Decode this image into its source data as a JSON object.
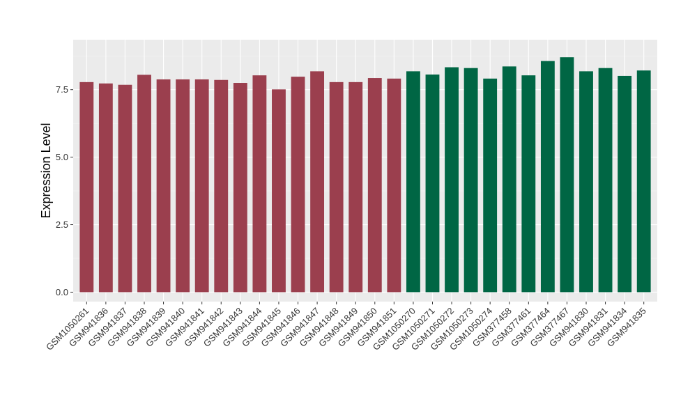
{
  "chart_data": {
    "type": "bar",
    "ylabel": "Expression Level",
    "xlabel": "",
    "ylim": [
      -0.35,
      9.35
    ],
    "yticks": [
      0.0,
      2.5,
      5.0,
      7.5
    ],
    "ytick_labels": [
      "0.0",
      "2.5",
      "5.0",
      "7.5"
    ],
    "grid": true,
    "background": "#EBEBEB",
    "group_colors": [
      "#9B3F4E",
      "#006644"
    ],
    "categories": [
      "GSM1050261",
      "GSM941836",
      "GSM941837",
      "GSM941838",
      "GSM941839",
      "GSM941840",
      "GSM941841",
      "GSM941842",
      "GSM941843",
      "GSM941844",
      "GSM941845",
      "GSM941846",
      "GSM941847",
      "GSM941848",
      "GSM941849",
      "GSM941850",
      "GSM941851",
      "GSM1050270",
      "GSM1050271",
      "GSM1050272",
      "GSM1050273",
      "GSM1050274",
      "GSM377458",
      "GSM377461",
      "GSM377464",
      "GSM377467",
      "GSM941830",
      "GSM941831",
      "GSM941834",
      "GSM941835"
    ],
    "values": [
      7.78,
      7.73,
      7.68,
      8.05,
      7.88,
      7.88,
      7.88,
      7.86,
      7.75,
      8.03,
      7.51,
      7.98,
      8.18,
      7.78,
      7.78,
      7.93,
      7.91,
      8.18,
      8.06,
      8.33,
      8.3,
      7.91,
      8.36,
      8.03,
      8.56,
      8.7,
      8.18,
      8.3,
      8.01,
      8.21
    ],
    "groups": [
      0,
      0,
      0,
      0,
      0,
      0,
      0,
      0,
      0,
      0,
      0,
      0,
      0,
      0,
      0,
      0,
      0,
      1,
      1,
      1,
      1,
      1,
      1,
      1,
      1,
      1,
      1,
      1,
      1,
      1
    ]
  }
}
